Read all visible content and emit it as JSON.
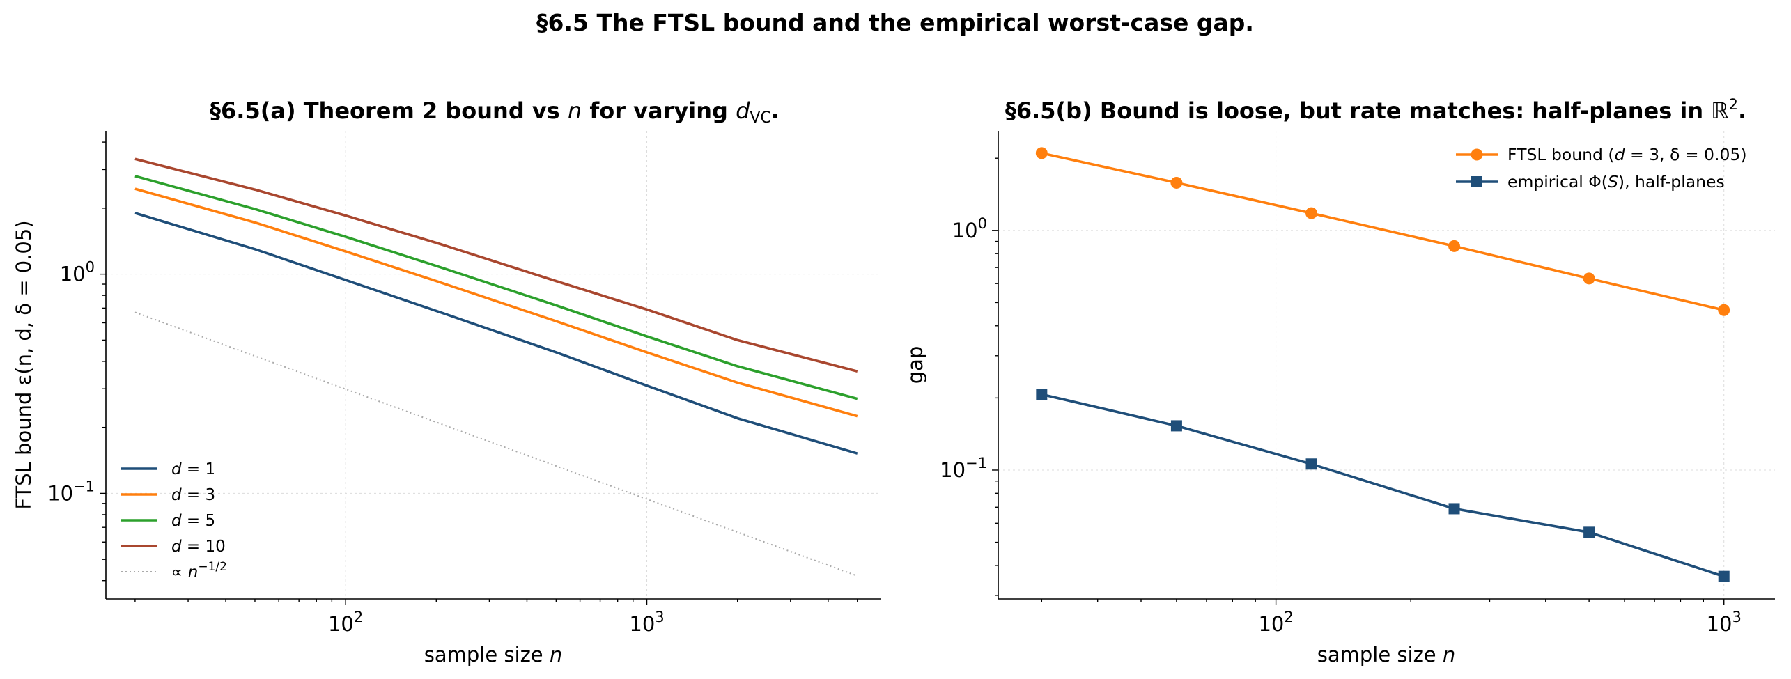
{
  "suptitle": "§6.5  The FTSL bound and the empirical worst-case gap.",
  "chart_data": [
    {
      "type": "line",
      "title_prefix": "§6.5(a)  Theorem 2 bound vs ",
      "title_n": "n",
      "title_mid": " for varying ",
      "title_d": "d",
      "title_sub": "VC",
      "title_end": ".",
      "xlabel_main": "sample size ",
      "xlabel_var": "n",
      "ylabel": "FTSL bound ε(n, d, δ = 0.05)",
      "xscale": "log",
      "yscale": "log",
      "xlim": [
        16,
        6000
      ],
      "ylim": [
        0.033,
        4.5
      ],
      "x_ticks": [
        {
          "value": 100,
          "base": "10",
          "exp": "2"
        },
        {
          "value": 1000,
          "base": "10",
          "exp": "3"
        }
      ],
      "y_ticks": [
        {
          "value": 0.1,
          "base": "10",
          "exp": "−1"
        },
        {
          "value": 1,
          "base": "10",
          "exp": "0"
        }
      ],
      "grid": true,
      "legend_position": "lower-left",
      "series": [
        {
          "name": "d = 1",
          "legend_var": "d",
          "legend_val": " = 1",
          "color": "#1f4e79",
          "style": "solid",
          "x": [
            20,
            50,
            100,
            200,
            500,
            1000,
            2000,
            5000
          ],
          "values": [
            1.9,
            1.3,
            0.94,
            0.68,
            0.44,
            0.31,
            0.22,
            0.152
          ]
        },
        {
          "name": "d = 3",
          "legend_var": "d",
          "legend_val": " = 3",
          "color": "#ff7f0e",
          "style": "solid",
          "x": [
            20,
            50,
            100,
            200,
            500,
            1000,
            2000,
            5000
          ],
          "values": [
            2.45,
            1.72,
            1.27,
            0.93,
            0.61,
            0.44,
            0.32,
            0.225
          ]
        },
        {
          "name": "d = 5",
          "legend_var": "d",
          "legend_val": " = 5",
          "color": "#2ca02c",
          "style": "solid",
          "x": [
            20,
            50,
            100,
            200,
            500,
            1000,
            2000,
            5000
          ],
          "values": [
            2.8,
            1.98,
            1.48,
            1.09,
            0.72,
            0.52,
            0.38,
            0.27
          ]
        },
        {
          "name": "d = 10",
          "legend_var": "d",
          "legend_val": " = 10",
          "color": "#a9472f",
          "style": "solid",
          "x": [
            20,
            50,
            100,
            200,
            500,
            1000,
            2000,
            5000
          ],
          "values": [
            3.35,
            2.43,
            1.85,
            1.39,
            0.93,
            0.69,
            0.5,
            0.36
          ]
        },
        {
          "name": "∝ n^−1/2",
          "legend_prefix": "∝ ",
          "legend_var": "n",
          "legend_sup": "−1/2",
          "color": "#aaaaaa",
          "style": "dotted",
          "x": [
            20,
            5000
          ],
          "values": [
            0.67,
            0.042
          ]
        }
      ]
    },
    {
      "type": "line",
      "title_text": "§6.5(b)  Bound is loose, but rate matches: half-planes in ",
      "title_r": "ℝ",
      "title_sup": "2",
      "title_end": ".",
      "xlabel_main": "sample size ",
      "xlabel_var": "n",
      "ylabel": "gap",
      "xscale": "log",
      "yscale": "log",
      "xlim": [
        24,
        1300
      ],
      "ylim": [
        0.029,
        2.6
      ],
      "x_ticks": [
        {
          "value": 100,
          "base": "10",
          "exp": "2"
        },
        {
          "value": 1000,
          "base": "10",
          "exp": "3"
        }
      ],
      "y_ticks": [
        {
          "value": 0.1,
          "base": "10",
          "exp": "−1"
        },
        {
          "value": 1,
          "base": "10",
          "exp": "0"
        }
      ],
      "grid": true,
      "legend_position": "upper-right",
      "series": [
        {
          "name": "FTSL bound  (d = 3, δ = 0.05)",
          "legend_text": "FTSL bound  (",
          "legend_var": "d",
          "legend_rest": " = 3, δ = 0.05)",
          "color": "#ff7f0e",
          "marker": "circle",
          "x": [
            30,
            60,
            120,
            250,
            500,
            1000
          ],
          "values": [
            2.1,
            1.58,
            1.18,
            0.86,
            0.63,
            0.465
          ]
        },
        {
          "name": "empirical Φ(S), half-planes",
          "legend_text": "empirical Φ(",
          "legend_var": "S",
          "legend_rest": "), half-planes",
          "color": "#1f4e79",
          "marker": "square",
          "x": [
            30,
            60,
            120,
            250,
            500,
            1000
          ],
          "values": [
            0.207,
            0.153,
            0.106,
            0.069,
            0.055,
            0.036
          ]
        }
      ]
    }
  ]
}
